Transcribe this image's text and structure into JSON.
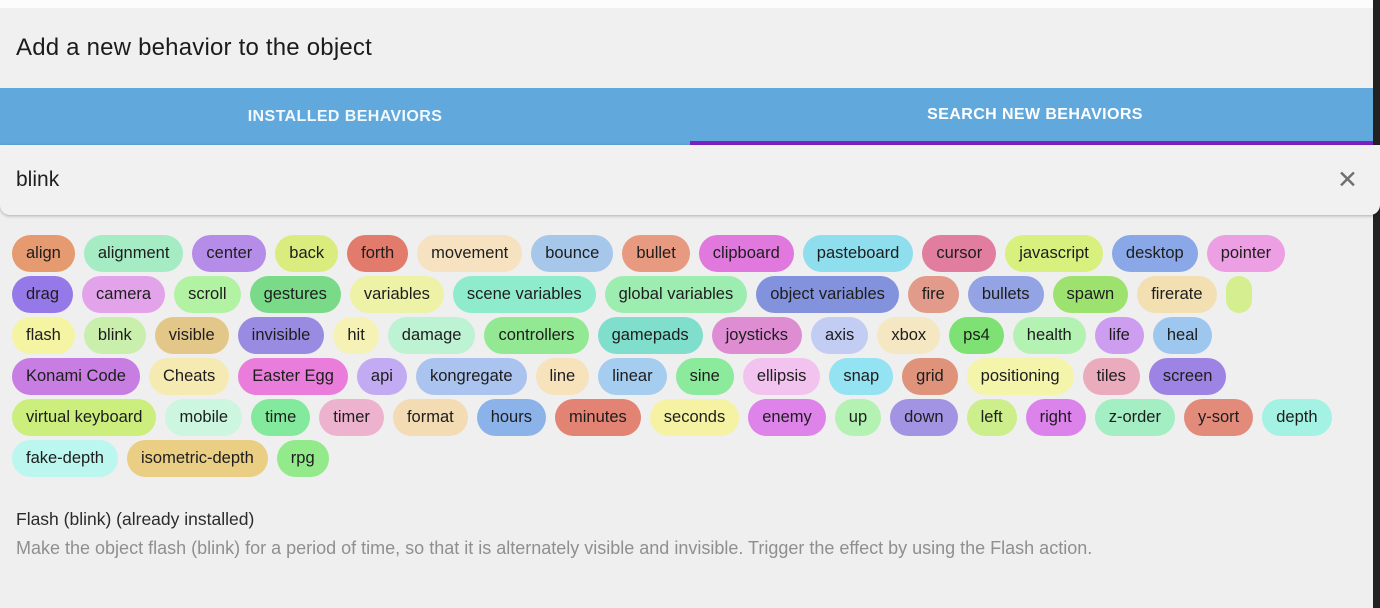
{
  "dialog": {
    "title": "Add a new behavior to the object"
  },
  "colors": {
    "tab_bar": "#61a9dc",
    "tab_indicator": "#7d22c3",
    "background": "#efefef"
  },
  "tabs": [
    {
      "label": "INSTALLED BEHAVIORS",
      "active": false
    },
    {
      "label": "SEARCH NEW BEHAVIORS",
      "active": true
    }
  ],
  "search": {
    "value": "blink",
    "close_icon": "✕"
  },
  "tags": {
    "rows": [
      [
        {
          "label": "align",
          "bg": "#e69a6f"
        },
        {
          "label": "alignment",
          "bg": "#a5ecc5"
        },
        {
          "label": "center",
          "bg": "#b68ce9"
        },
        {
          "label": "back",
          "bg": "#d9ec7d"
        },
        {
          "label": "forth",
          "bg": "#e27b6b"
        },
        {
          "label": "movement",
          "bg": "#f6e2c0"
        },
        {
          "label": "bounce",
          "bg": "#a6c6ea"
        },
        {
          "label": "bullet",
          "bg": "#e89a80"
        },
        {
          "label": "clipboard",
          "bg": "#e078de"
        },
        {
          "label": "pasteboard",
          "bg": "#8edeee"
        },
        {
          "label": "cursor",
          "bg": "#e17d9e"
        },
        {
          "label": "javascript",
          "bg": "#d7f07e"
        },
        {
          "label": "desktop",
          "bg": "#8aa8e8"
        },
        {
          "label": "pointer",
          "bg": "#ec9fe2"
        }
      ],
      [
        {
          "label": "drag",
          "bg": "#9679e8"
        },
        {
          "label": "camera",
          "bg": "#e2a3ea"
        },
        {
          "label": "scroll",
          "bg": "#b2f2a3"
        },
        {
          "label": "gestures",
          "bg": "#79da88"
        },
        {
          "label": "variables",
          "bg": "#eef2a6"
        },
        {
          "label": "scene variables",
          "bg": "#8eeccd"
        },
        {
          "label": "global variables",
          "bg": "#9dedb1"
        },
        {
          "label": "object variables",
          "bg": "#8292dd"
        },
        {
          "label": "fire",
          "bg": "#e29a8a"
        },
        {
          "label": "bullets",
          "bg": "#94a3e3"
        },
        {
          "label": "spawn",
          "bg": "#9de26f"
        },
        {
          "label": "firerate",
          "bg": "#f2e0b3"
        },
        {
          "label": "",
          "bg": "#d5ee90"
        }
      ],
      [
        {
          "label": "flash",
          "bg": "#f4f4a2"
        },
        {
          "label": "blink",
          "bg": "#caeeac"
        },
        {
          "label": "visible",
          "bg": "#e2c789"
        },
        {
          "label": "invisible",
          "bg": "#9a8be2"
        },
        {
          "label": "hit",
          "bg": "#f6f2b6"
        },
        {
          "label": "damage",
          "bg": "#bdf2d3"
        },
        {
          "label": "controllers",
          "bg": "#93e993"
        },
        {
          "label": "gamepads",
          "bg": "#7fdecc"
        },
        {
          "label": "joysticks",
          "bg": "#de8dd3"
        },
        {
          "label": "axis",
          "bg": "#c3ccf3"
        },
        {
          "label": "xbox",
          "bg": "#f6e7c3"
        },
        {
          "label": "ps4",
          "bg": "#7de273"
        },
        {
          "label": "health",
          "bg": "#b3f2b3"
        },
        {
          "label": "life",
          "bg": "#cd9def"
        },
        {
          "label": "heal",
          "bg": "#9dc7ef"
        }
      ],
      [
        {
          "label": "Konami Code",
          "bg": "#c77de2"
        },
        {
          "label": "Cheats",
          "bg": "#f6eab3"
        },
        {
          "label": "Easter Egg",
          "bg": "#ea7ddb"
        },
        {
          "label": "api",
          "bg": "#c3abf3"
        },
        {
          "label": "kongregate",
          "bg": "#abc3ef"
        },
        {
          "label": "line",
          "bg": "#f6e3bb"
        },
        {
          "label": "linear",
          "bg": "#a5cdf0"
        },
        {
          "label": "sine",
          "bg": "#8bea9b"
        },
        {
          "label": "ellipsis",
          "bg": "#f3c3ef"
        },
        {
          "label": "snap",
          "bg": "#93e3f3"
        },
        {
          "label": "grid",
          "bg": "#de937a"
        },
        {
          "label": "positioning",
          "bg": "#f4f4ab"
        },
        {
          "label": "tiles",
          "bg": "#eaabbd"
        },
        {
          "label": "screen",
          "bg": "#9d83e3"
        }
      ],
      [
        {
          "label": "virtual keyboard",
          "bg": "#ccee7d"
        },
        {
          "label": "mobile",
          "bg": "#ccf6df"
        },
        {
          "label": "time",
          "bg": "#83ea9d"
        },
        {
          "label": "timer",
          "bg": "#edb3ce"
        },
        {
          "label": "format",
          "bg": "#f3dbb3"
        },
        {
          "label": "hours",
          "bg": "#8bb3ea"
        },
        {
          "label": "minutes",
          "bg": "#e38373"
        },
        {
          "label": "seconds",
          "bg": "#f6f2a3"
        },
        {
          "label": "enemy",
          "bg": "#de83ea"
        },
        {
          "label": "up",
          "bg": "#b3f2b3"
        },
        {
          "label": "down",
          "bg": "#a393e3"
        },
        {
          "label": "left",
          "bg": "#ccee8b"
        },
        {
          "label": "right",
          "bg": "#db83ea"
        },
        {
          "label": "z-order",
          "bg": "#a3eec3"
        },
        {
          "label": "y-sort",
          "bg": "#e38b7b"
        },
        {
          "label": "depth",
          "bg": "#a3f2e3"
        }
      ],
      [
        {
          "label": "fake-depth",
          "bg": "#bbf6ef"
        },
        {
          "label": "isometric-depth",
          "bg": "#eace83"
        },
        {
          "label": "rpg",
          "bg": "#93ea8b"
        }
      ]
    ]
  },
  "result": {
    "title": "Flash (blink) (already installed)",
    "description": "Make the object flash (blink) for a period of time, so that it is alternately visible and invisible. Trigger the effect by using the Flash action."
  }
}
